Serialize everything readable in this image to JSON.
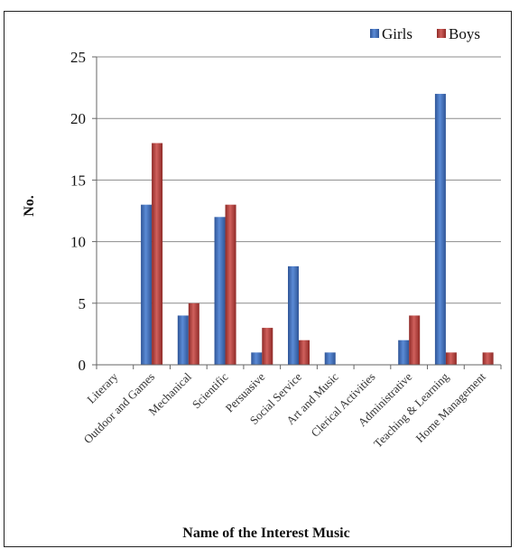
{
  "chart_data": {
    "type": "bar",
    "categories": [
      "Literary",
      "Outdoor and Games",
      "Mechanical",
      "Scientific",
      "Persuasive",
      "Social Service",
      "Art and Music",
      "Clerical Activities",
      "Administrative",
      "Teaching & Learning",
      "Home Management"
    ],
    "series": [
      {
        "name": "Girls",
        "color": "#4472c4",
        "values": [
          0,
          13,
          4,
          12,
          1,
          8,
          1,
          0,
          2,
          22,
          0
        ]
      },
      {
        "name": "Boys",
        "color": "#c0504d",
        "values": [
          0,
          18,
          5,
          13,
          3,
          2,
          0,
          0,
          4,
          1,
          1
        ]
      }
    ],
    "title": "",
    "xlabel": "Name of the Interest Music",
    "ylabel": "No.",
    "ylim": [
      0,
      25
    ],
    "yticks": [
      "0",
      "5",
      "10",
      "15",
      "20",
      "25"
    ],
    "grid": true,
    "legend_position": "top-right"
  }
}
